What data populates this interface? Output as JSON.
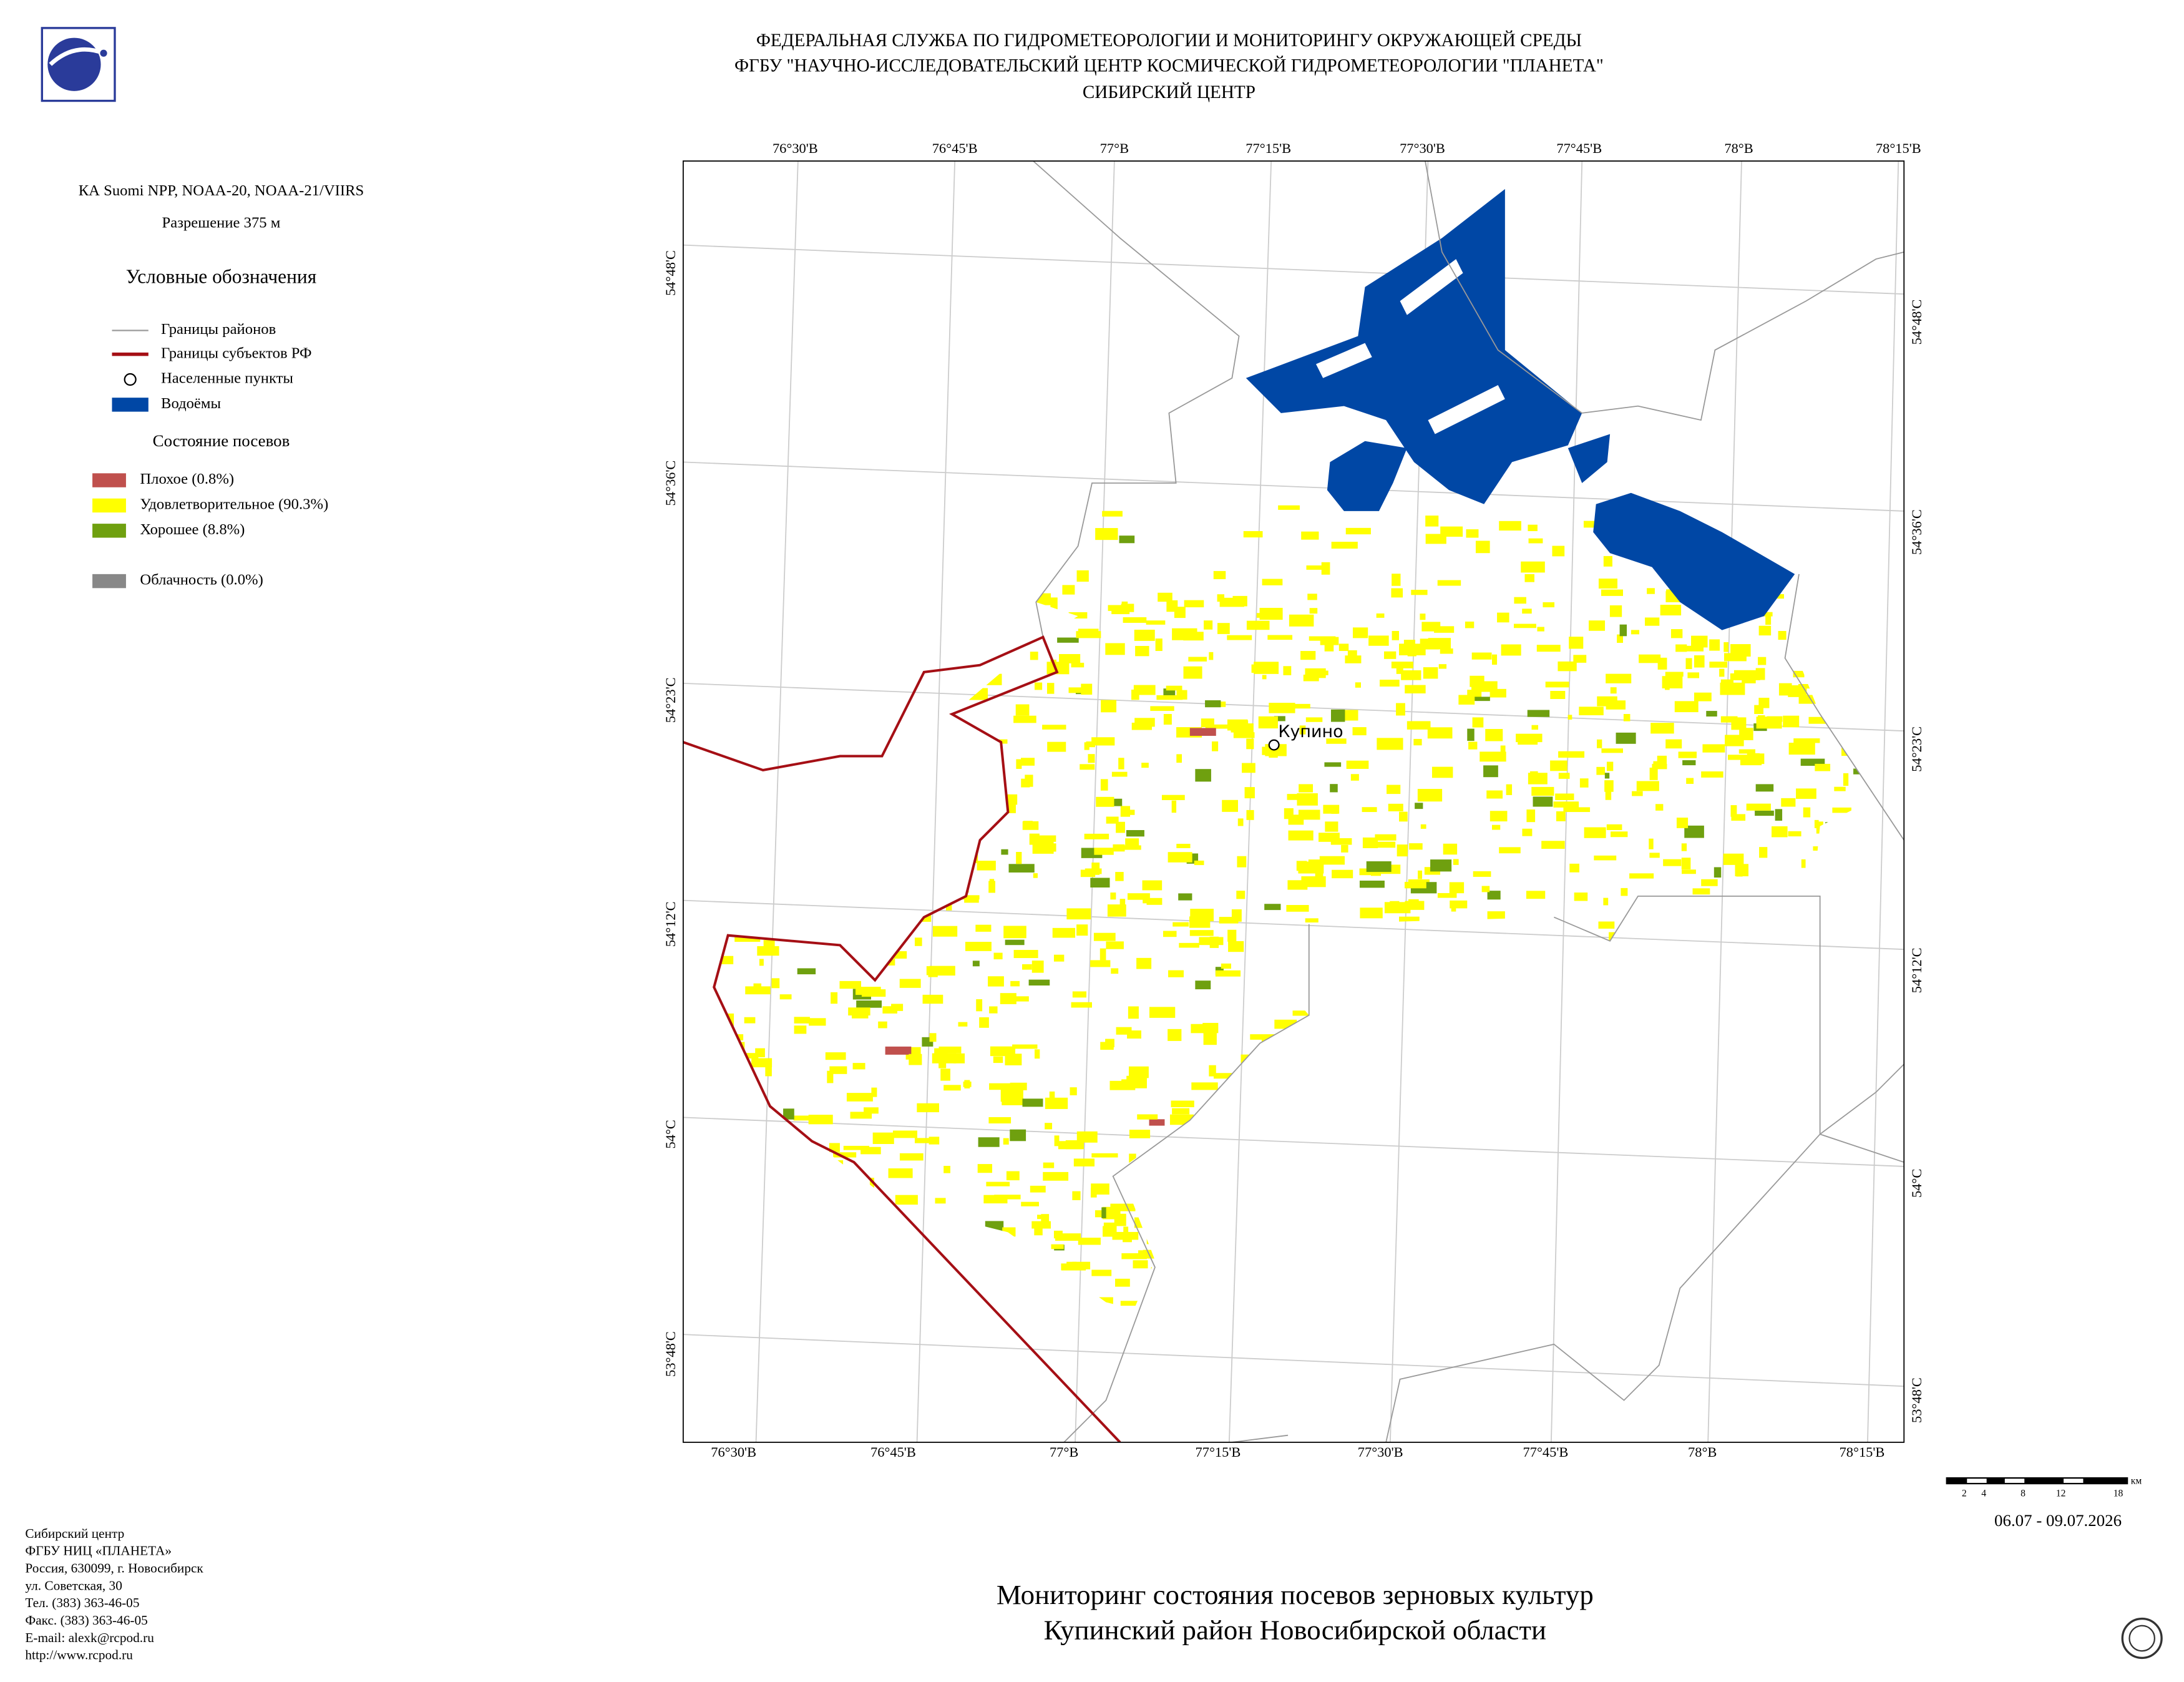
{
  "header": {
    "lines": [
      "ФЕДЕРАЛЬНАЯ СЛУЖБА ПО ГИДРОМЕТЕОРОЛОГИИ И МОНИТОРИНГУ ОКРУЖАЮЩЕЙ СРЕДЫ",
      "ФГБУ \"НАУЧНО-ИССЛЕДОВАТЕЛЬСКИЙ ЦЕНТР КОСМИЧЕСКОЙ ГИДРОМЕТЕОРОЛОГИИ \"ПЛАНЕТА\"",
      "СИБИРСКИЙ ЦЕНТР"
    ]
  },
  "info": {
    "satellite": "КА Suomi NPP, NOAA-20, NOAA-21/VIIRS",
    "resolution": "Разрешение 375 м"
  },
  "legend": {
    "title": "Условные обозначения",
    "items": [
      {
        "label": "Границы районов",
        "color": "#999999"
      },
      {
        "label": "Границы субъектов РФ",
        "color": "#a50f15"
      },
      {
        "label": "Населенные пункты"
      },
      {
        "label": "Водоёмы",
        "color": "#0047a5"
      }
    ],
    "crops_title": "Состояние посевов",
    "crops": [
      {
        "label": "Плохое (0.8%)",
        "color": "#c0504d"
      },
      {
        "label": "Удовлетворительное (90.3%)",
        "color": "#ffff00"
      },
      {
        "label": "Хорошее (8.8%)",
        "color": "#6fa00f"
      }
    ],
    "cloud": {
      "label": "Облачность (0.0%)",
      "color": "#888888"
    }
  },
  "map": {
    "top_labels": [
      "76°30'В",
      "76°45'В",
      "77°В",
      "77°15'В",
      "77°30'В",
      "77°45'В",
      "78°В",
      "78°15'В"
    ],
    "bottom_labels": [
      "76°30'В",
      "76°45'В",
      "77°В",
      "77°15'В",
      "77°30'В",
      "77°45'В",
      "78°В",
      "78°15'В"
    ],
    "left_labels": [
      "54°48'С",
      "54°36'С",
      "54°23'С",
      "54°12'С",
      "54°С",
      "53°48'С"
    ],
    "right_labels": [
      "54°48'С",
      "54°36'С",
      "54°23'С",
      "54°12'С",
      "54°С",
      "53°48'С"
    ],
    "places": [
      {
        "label": "Купино"
      }
    ]
  },
  "scale": {
    "ticks": [
      2,
      4,
      8,
      12,
      18
    ],
    "unit": "км"
  },
  "date": "06.07 - 09.07.2026",
  "contacts": [
    "Сибирский центр",
    "ФГБУ НИЦ «ПЛАНЕТА»",
    "Россия, 630099, г. Новосибирск",
    "ул. Советская, 30",
    "Тел. (383) 363-46-05",
    "Факс. (383) 363-46-05",
    "E-mail: alexk@rcpod.ru",
    "http://www.rcpod.ru"
  ],
  "title": [
    "Мониторинг состояния посевов зерновых культур",
    "Купинский район Новосибирской области"
  ]
}
